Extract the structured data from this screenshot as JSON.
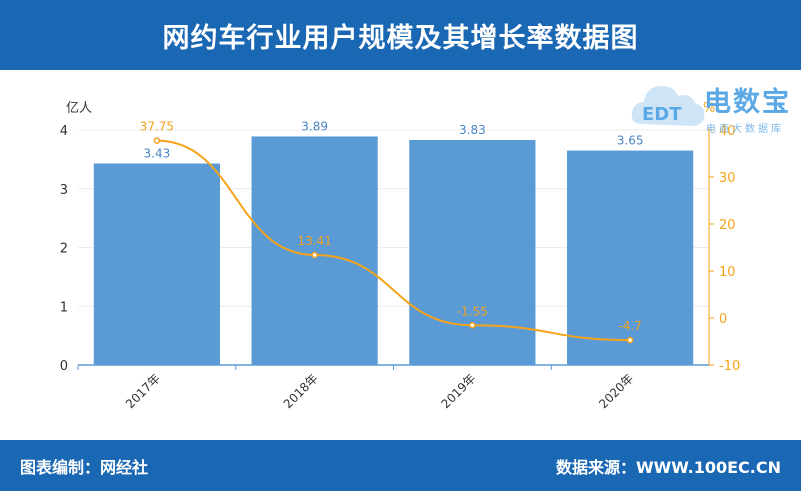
{
  "header": {
    "title": "网约车行业用户规模及其增长率数据图"
  },
  "footer": {
    "left": "图表编制：网经社",
    "right": "数据来源：WWW.100EC.CN"
  },
  "logo": {
    "brand": "电数宝",
    "sub": "电商大数据库",
    "mark": "EDT"
  },
  "colors": {
    "bar": "#5b9bd5",
    "line": "#f5a31a",
    "header": "#1a67b4",
    "bar_label": "#4a86c5",
    "line_label": "#f0a020"
  },
  "chart_data": {
    "type": "bar",
    "categories": [
      "2017年",
      "2018年",
      "2019年",
      "2020年"
    ],
    "series": [
      {
        "values": [
          3.43,
          3.89,
          3.83,
          3.65
        ],
        "axis": "left"
      },
      {
        "values": [
          37.75,
          13.41,
          -1.55,
          -4.7
        ],
        "axis": "right",
        "type": "line"
      }
    ],
    "ylabel_left": "亿人",
    "ylabel_right": "%",
    "ylim_left": [
      0,
      4
    ],
    "ylim_right": [
      -10,
      40
    ],
    "yticks_left": [
      "0",
      "1",
      "2",
      "3",
      "4"
    ],
    "yticks_right": [
      "-10",
      "0",
      "10",
      "20",
      "30",
      "40"
    ],
    "grid": true
  }
}
